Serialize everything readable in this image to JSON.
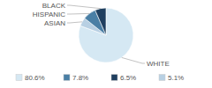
{
  "chart_data": {
    "type": "pie",
    "categories": [
      "WHITE",
      "ASIAN",
      "HISPANIC",
      "BLACK"
    ],
    "values": [
      80.6,
      5.1,
      7.8,
      6.5
    ],
    "colors": [
      "#d5e8f3",
      "#b8d0e3",
      "#4a7fa5",
      "#1f3f5f"
    ],
    "legend_items": [
      {
        "label": "80.6%",
        "color": "#d5e8f3"
      },
      {
        "label": "7.8%",
        "color": "#4a7fa5"
      },
      {
        "label": "6.5%",
        "color": "#1f3f5f"
      },
      {
        "label": "5.1%",
        "color": "#b8d0e3"
      }
    ]
  }
}
